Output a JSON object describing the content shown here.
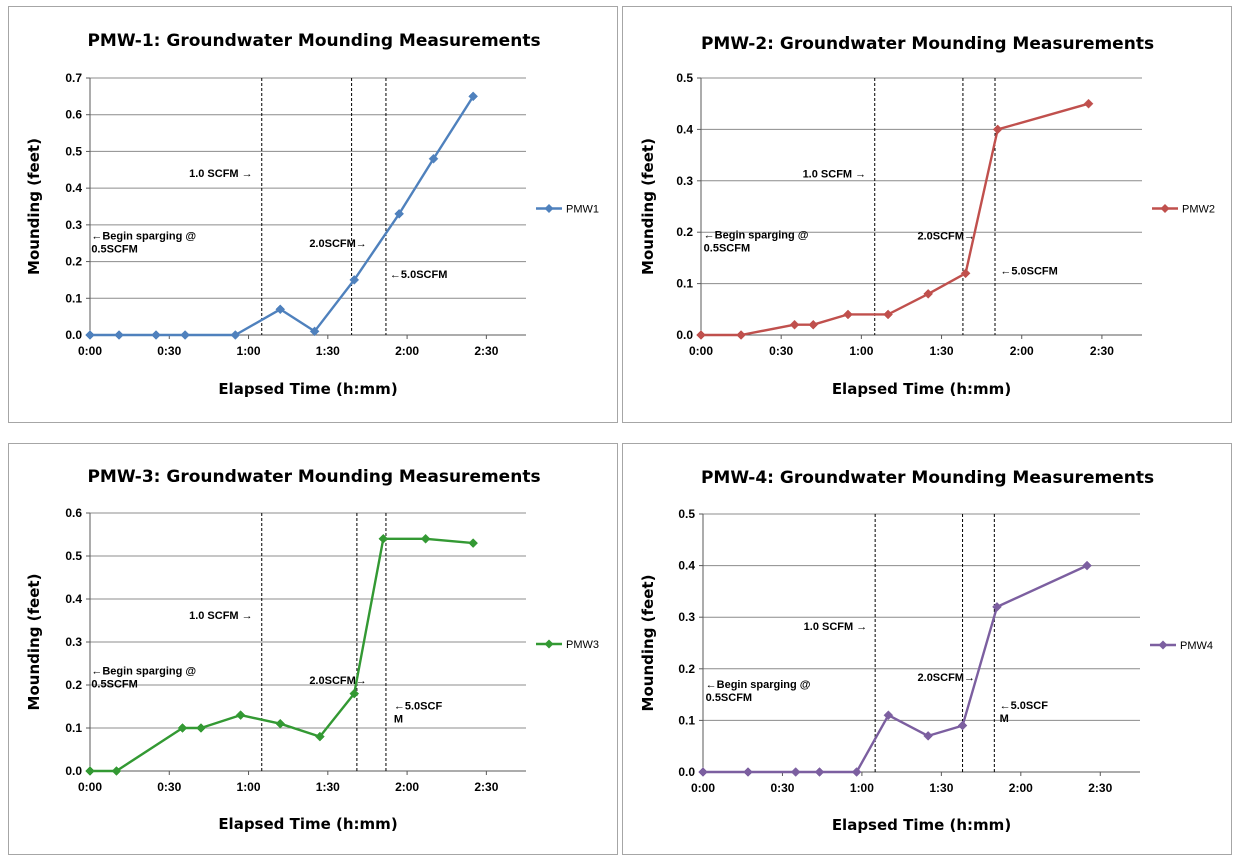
{
  "chart_data": [
    {
      "type": "line",
      "title": "PMW-1: Groundwater Mounding Measurements",
      "xlabel": "Elapsed Time (h:mm)",
      "ylabel": "Mounding (feet)",
      "xlim": [
        0,
        165
      ],
      "xticks": [
        0,
        30,
        60,
        90,
        120,
        150
      ],
      "xtick_labels": [
        "0:00",
        "0:30",
        "1:00",
        "1:30",
        "2:00",
        "2:30"
      ],
      "ylim": [
        0,
        0.7
      ],
      "yticks": [
        0,
        0.1,
        0.2,
        0.3,
        0.4,
        0.5,
        0.6,
        0.7
      ],
      "ytick_labels": [
        "0.0",
        "0.1",
        "0.2",
        "0.3",
        "0.4",
        "0.5",
        "0.6",
        "0.7"
      ],
      "grid": "horizontal",
      "legend": "right",
      "color": "#4f81bd",
      "series": [
        {
          "name": "PMW1",
          "x": [
            0,
            11,
            25,
            36,
            55,
            72,
            85,
            100,
            117,
            130,
            145
          ],
          "y": [
            0,
            0,
            0,
            0,
            0,
            0.07,
            0.01,
            0.15,
            0.33,
            0.48,
            0.65
          ]
        }
      ],
      "markers_x": [
        65,
        99,
        112
      ],
      "annotations": [
        {
          "lines": [
            "←Begin sparging @",
            "0.5SCFM"
          ],
          "x": 0.5,
          "y": 0.26
        },
        {
          "lines": [
            "1.0 SCFM →"
          ],
          "x": 37.5,
          "y": 0.43
        },
        {
          "lines": [
            "2.0SCFM→"
          ],
          "x": 83,
          "y": 0.24
        },
        {
          "lines": [
            "←5.0SCFM"
          ],
          "x": 113.5,
          "y": 0.155
        }
      ]
    },
    {
      "type": "line",
      "title": "PMW-2: Groundwater Mounding Measurements",
      "xlabel": "Elapsed Time (h:mm)",
      "ylabel": "Mounding (feet)",
      "xlim": [
        0,
        165
      ],
      "xticks": [
        0,
        30,
        60,
        90,
        120,
        150
      ],
      "xtick_labels": [
        "0:00",
        "0:30",
        "1:00",
        "1:30",
        "2:00",
        "2:30"
      ],
      "ylim": [
        0,
        0.5
      ],
      "yticks": [
        0,
        0.1,
        0.2,
        0.3,
        0.4,
        0.5
      ],
      "ytick_labels": [
        "0.0",
        "0.1",
        "0.2",
        "0.3",
        "0.4",
        "0.5"
      ],
      "grid": "horizontal",
      "legend": "right",
      "color": "#c0504d",
      "series": [
        {
          "name": "PMW2",
          "x": [
            0,
            15,
            35,
            42,
            55,
            70,
            85,
            99,
            111,
            145
          ],
          "y": [
            0,
            0,
            0.02,
            0.02,
            0.04,
            0.04,
            0.08,
            0.12,
            0.4,
            0.45
          ]
        }
      ],
      "markers_x": [
        65,
        98,
        110
      ],
      "annotations": [
        {
          "lines": [
            "←Begin sparging @",
            "0.5SCFM"
          ],
          "x": 1,
          "y": 0.188
        },
        {
          "lines": [
            "1.0 SCFM →"
          ],
          "x": 38,
          "y": 0.306
        },
        {
          "lines": [
            "2.0SCFM→"
          ],
          "x": 81,
          "y": 0.186
        },
        {
          "lines": [
            "←5.0SCFM"
          ],
          "x": 112,
          "y": 0.118
        }
      ]
    },
    {
      "type": "line",
      "title": "PMW-3: Groundwater Mounding Measurements",
      "xlabel": "Elapsed Time (h:mm)",
      "ylabel": "Mounding (feet)",
      "xlim": [
        0,
        165
      ],
      "xticks": [
        0,
        30,
        60,
        90,
        120,
        150
      ],
      "xtick_labels": [
        "0:00",
        "0:30",
        "1:00",
        "1:30",
        "2:00",
        "2:30"
      ],
      "ylim": [
        0,
        0.6
      ],
      "yticks": [
        0,
        0.1,
        0.2,
        0.3,
        0.4,
        0.5,
        0.6
      ],
      "ytick_labels": [
        "0.0",
        "0.1",
        "0.2",
        "0.3",
        "0.4",
        "0.5",
        "0.6"
      ],
      "grid": "horizontal",
      "legend": "right",
      "color": "#339933",
      "series": [
        {
          "name": "PMW3",
          "x": [
            0,
            10,
            35,
            42,
            57,
            72,
            87,
            100,
            111,
            127,
            145
          ],
          "y": [
            0,
            0,
            0.1,
            0.1,
            0.13,
            0.11,
            0.08,
            0.18,
            0.54,
            0.54,
            0.53
          ]
        }
      ],
      "markers_x": [
        65,
        101,
        112
      ],
      "annotations": [
        {
          "lines": [
            "←Begin sparging @",
            "0.5SCFM"
          ],
          "x": 0.5,
          "y": 0.225
        },
        {
          "lines": [
            "1.0 SCFM →"
          ],
          "x": 37.5,
          "y": 0.353
        },
        {
          "lines": [
            "2.0SCFM→"
          ],
          "x": 83,
          "y": 0.202
        },
        {
          "lines": [
            "←5.0SCF",
            "M"
          ],
          "x": 115,
          "y": 0.143
        }
      ]
    },
    {
      "type": "line",
      "title": "PMW-4: Groundwater Mounding Measurements",
      "xlabel": "Elapsed Time (h:mm)",
      "ylabel": "Mounding (feet)",
      "xlim": [
        0,
        165
      ],
      "xticks": [
        0,
        30,
        60,
        90,
        120,
        150
      ],
      "xtick_labels": [
        "0:00",
        "0:30",
        "1:00",
        "1:30",
        "2:00",
        "2:30"
      ],
      "ylim": [
        0,
        0.5
      ],
      "yticks": [
        0,
        0.1,
        0.2,
        0.3,
        0.4,
        0.5
      ],
      "ytick_labels": [
        "0.0",
        "0.1",
        "0.2",
        "0.3",
        "0.4",
        "0.5"
      ],
      "grid": "horizontal",
      "legend": "right",
      "color": "#7c5fa0",
      "series": [
        {
          "name": "PMW4",
          "x": [
            0,
            17,
            35,
            44,
            58,
            70,
            85,
            98,
            111,
            145
          ],
          "y": [
            0,
            0,
            0,
            0,
            0,
            0.11,
            0.07,
            0.09,
            0.32,
            0.4
          ]
        }
      ],
      "markers_x": [
        65,
        98,
        110
      ],
      "annotations": [
        {
          "lines": [
            "←Begin sparging @",
            "0.5SCFM"
          ],
          "x": 1,
          "y": 0.163
        },
        {
          "lines": [
            "1.0 SCFM →"
          ],
          "x": 38,
          "y": 0.275
        },
        {
          "lines": [
            "2.0SCFM→"
          ],
          "x": 81,
          "y": 0.176
        },
        {
          "lines": [
            "←5.0SCF",
            "M"
          ],
          "x": 112,
          "y": 0.122
        }
      ]
    }
  ]
}
